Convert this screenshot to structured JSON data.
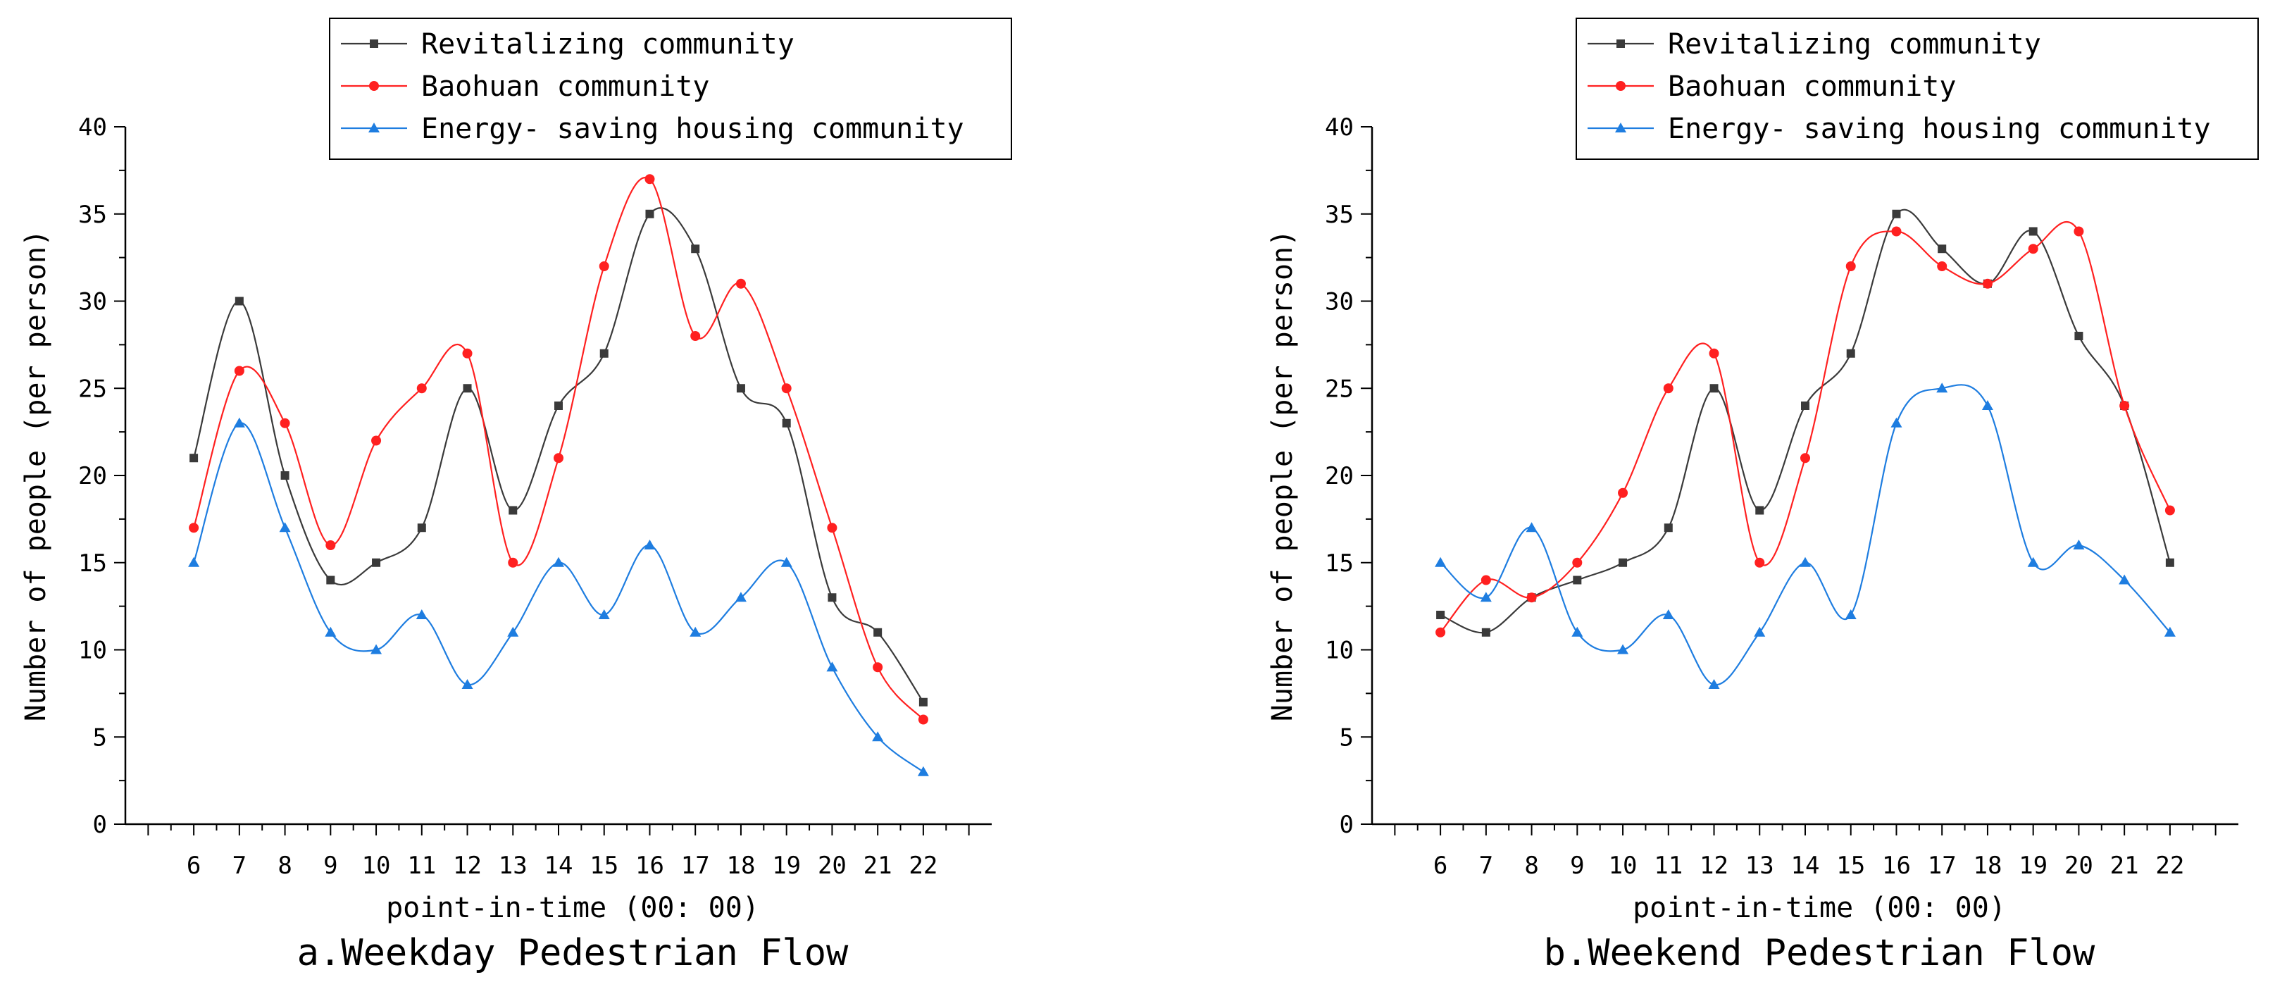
{
  "chart_data": [
    {
      "type": "line",
      "caption": "a.Weekday Pedestrian Flow",
      "xlabel": "point-in-time (00: 00)",
      "ylabel": "Number of people (per person)",
      "x": [
        6,
        7,
        8,
        9,
        10,
        11,
        12,
        13,
        14,
        15,
        16,
        17,
        18,
        19,
        20,
        21,
        22
      ],
      "xlim": [
        4.5,
        23.5
      ],
      "ylim": [
        0,
        40
      ],
      "yticks": [
        0,
        5,
        10,
        15,
        20,
        25,
        30,
        35,
        40
      ],
      "legend_position": "top-right",
      "series": [
        {
          "name": "Revitalizing community",
          "color": "#3a3a3a",
          "marker": "square",
          "values": [
            21,
            30,
            20,
            14,
            15,
            17,
            25,
            18,
            24,
            27,
            35,
            33,
            25,
            23,
            13,
            11,
            7
          ]
        },
        {
          "name": "Baohuan community",
          "color": "#ff2020",
          "marker": "circle",
          "values": [
            17,
            26,
            23,
            16,
            22,
            25,
            27,
            15,
            21,
            32,
            37,
            28,
            31,
            25,
            17,
            9,
            6
          ]
        },
        {
          "name": "Energy- saving housing community",
          "color": "#1e7de0",
          "marker": "triangle",
          "values": [
            15,
            23,
            17,
            11,
            10,
            12,
            8,
            11,
            15,
            12,
            16,
            11,
            13,
            15,
            9,
            5,
            3
          ]
        }
      ]
    },
    {
      "type": "line",
      "caption": "b.Weekend Pedestrian Flow",
      "xlabel": "point-in-time (00: 00)",
      "ylabel": "Number of people (per person)",
      "x": [
        6,
        7,
        8,
        9,
        10,
        11,
        12,
        13,
        14,
        15,
        16,
        17,
        18,
        19,
        20,
        21,
        22
      ],
      "xlim": [
        4.5,
        23.5
      ],
      "ylim": [
        0,
        40
      ],
      "yticks": [
        0,
        5,
        10,
        15,
        20,
        25,
        30,
        35,
        40
      ],
      "legend_position": "top-right",
      "series": [
        {
          "name": "Revitalizing community",
          "color": "#3a3a3a",
          "marker": "square",
          "values": [
            12,
            11,
            13,
            14,
            15,
            17,
            25,
            18,
            24,
            27,
            35,
            33,
            31,
            34,
            28,
            24,
            15
          ]
        },
        {
          "name": "Baohuan community",
          "color": "#ff2020",
          "marker": "circle",
          "values": [
            11,
            14,
            13,
            15,
            19,
            25,
            27,
            15,
            21,
            32,
            34,
            32,
            31,
            33,
            34,
            24,
            18
          ]
        },
        {
          "name": "Energy- saving housing community",
          "color": "#1e7de0",
          "marker": "triangle",
          "values": [
            15,
            13,
            17,
            11,
            10,
            12,
            8,
            11,
            15,
            12,
            23,
            25,
            24,
            15,
            16,
            14,
            11
          ]
        }
      ]
    }
  ]
}
